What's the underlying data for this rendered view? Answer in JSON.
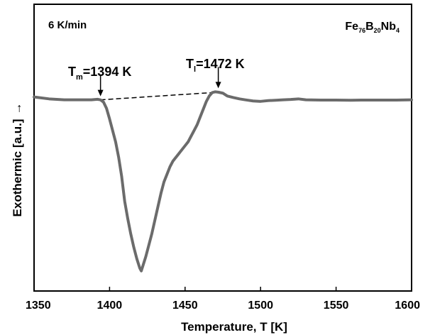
{
  "chart_data": {
    "type": "line",
    "xlabel": "Temperature, T [K]",
    "ylabel": "Exothermic [a.u.]",
    "ylabel_arrow": "→",
    "xlim": [
      1350,
      1600
    ],
    "ylim": [
      -1.0,
      0.5
    ],
    "xticks": [
      1350,
      1400,
      1450,
      1500,
      1550,
      1600
    ],
    "yticks_visible": false,
    "grid": false,
    "legend": "none",
    "annotations": {
      "rate": "6 K/min",
      "composition": {
        "parts": [
          {
            "text": "Fe",
            "sub": "76"
          },
          {
            "text": "B",
            "sub": "20"
          },
          {
            "text": "Nb",
            "sub": "4"
          }
        ]
      },
      "tm": {
        "main": "T",
        "sub": "m",
        "rest": "=1394 K",
        "x": 1394
      },
      "tl": {
        "main": "T",
        "sub": "l",
        "rest": "=1472 K",
        "x": 1472
      }
    },
    "baseline": {
      "style": "dashed",
      "from": [
        1394,
        0.0
      ],
      "to": [
        1472,
        0.04
      ]
    },
    "series": [
      {
        "color": "#6b6b6b",
        "x": [
          1350,
          1360,
          1370,
          1380,
          1388,
          1392,
          1394,
          1396,
          1398,
          1400,
          1402,
          1404,
          1406,
          1408,
          1410,
          1412,
          1414,
          1416,
          1418,
          1420,
          1421,
          1422,
          1424,
          1426,
          1428,
          1430,
          1432,
          1434,
          1436,
          1438,
          1440,
          1442,
          1444,
          1446,
          1448,
          1450,
          1452,
          1454,
          1456,
          1458,
          1460,
          1462,
          1464,
          1466,
          1468,
          1470,
          1472,
          1475,
          1478,
          1482,
          1486,
          1490,
          1495,
          1500,
          1505,
          1510,
          1515,
          1520,
          1525,
          1530,
          1540,
          1550,
          1560,
          1570,
          1580,
          1590,
          1600
        ],
        "y": [
          0.015,
          0.005,
          0.0,
          0.0,
          0.0,
          0.003,
          0.0,
          -0.012,
          -0.045,
          -0.1,
          -0.16,
          -0.22,
          -0.3,
          -0.4,
          -0.53,
          -0.62,
          -0.7,
          -0.77,
          -0.83,
          -0.88,
          -0.895,
          -0.87,
          -0.82,
          -0.76,
          -0.7,
          -0.63,
          -0.56,
          -0.49,
          -0.43,
          -0.39,
          -0.35,
          -0.32,
          -0.3,
          -0.28,
          -0.26,
          -0.24,
          -0.22,
          -0.19,
          -0.16,
          -0.13,
          -0.09,
          -0.05,
          -0.01,
          0.02,
          0.038,
          0.042,
          0.04,
          0.035,
          0.02,
          0.012,
          0.005,
          0.0,
          -0.006,
          -0.008,
          -0.004,
          -0.002,
          0.0,
          0.002,
          0.005,
          0.0,
          -0.001,
          -0.001,
          -0.002,
          -0.001,
          -0.001,
          -0.001,
          0.0
        ]
      }
    ]
  }
}
